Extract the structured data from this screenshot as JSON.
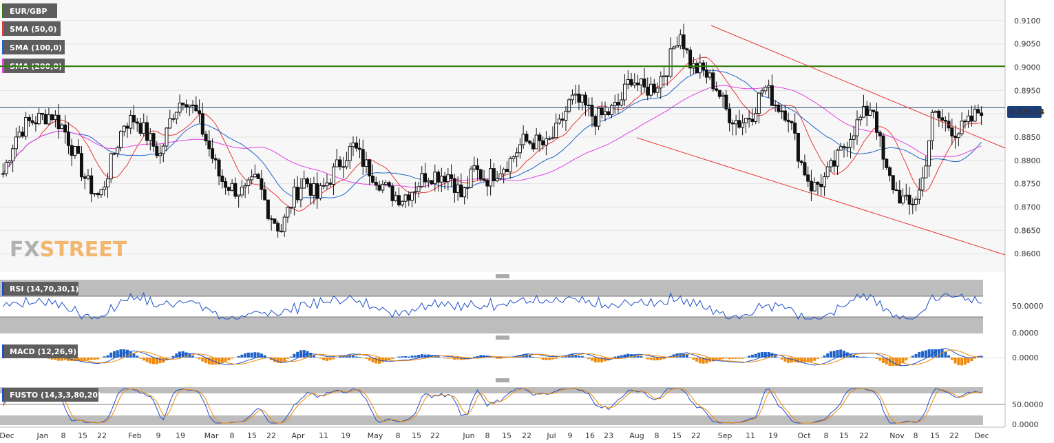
{
  "instrument": "EUR/GBP",
  "current_price": "0.89134",
  "indicators": [
    {
      "label": "SMA (50,0)",
      "color": "#e53935"
    },
    {
      "label": "SMA (100,0)",
      "color": "#1e63c9"
    },
    {
      "label": "SMA (200,0)",
      "color": "#e040e0"
    }
  ],
  "watermark": {
    "part1": "FX",
    "part2": "STREET"
  },
  "resistance_level": 0.9002,
  "colors": {
    "instrument": "#3a7a1a",
    "resistance": "#2e7d0a",
    "price_line": "#1a3f7a",
    "trend": "#e53935",
    "rsi": "#1e4fc9",
    "macd_pos": "#1e63c9",
    "macd_neg": "#f08a0a",
    "signal": "#f08a0a"
  },
  "panels": {
    "rsi": {
      "label": "RSI (14,70,30,1)",
      "ticks": [
        "50.0000",
        "0.0000"
      ]
    },
    "macd": {
      "label": "MACD (12,26,9)",
      "ticks": [
        "0.0000"
      ]
    },
    "fusto": {
      "label": "FUSTO (14,3,3,80,20)",
      "ticks": [
        "50.0000",
        "0.0000"
      ]
    }
  },
  "chart_data": {
    "type": "candlestick",
    "y_ticks": [
      "0.9100",
      "0.9050",
      "0.9000",
      "0.8950",
      "0.8900",
      "0.8850",
      "0.8800",
      "0.8750",
      "0.8700",
      "0.8650",
      "0.8600"
    ],
    "ylim": [
      0.8575,
      0.9135
    ],
    "x_ticks": [
      "Dec",
      "Jan",
      "8",
      "15",
      "22",
      "Feb",
      "9",
      "19",
      "Mar",
      "8",
      "15",
      "22",
      "Apr",
      "11",
      "19",
      "May",
      "8",
      "15",
      "22",
      "Jun",
      "8",
      "15",
      "22",
      "Jul",
      "9",
      "16",
      "23",
      "Aug",
      "8",
      "15",
      "22",
      "Sep",
      "11",
      "19",
      "Oct",
      "8",
      "15",
      "22",
      "Nov",
      "8",
      "15",
      "22",
      "Dec"
    ],
    "trendlines": [
      {
        "name": "upper",
        "from": [
          0.9104,
          "Aug 28"
        ],
        "to": [
          0.8837,
          "Dec 4"
        ]
      },
      {
        "name": "lower",
        "from": [
          0.8858,
          "Aug 1"
        ],
        "to": [
          0.8602,
          "Dec 4"
        ]
      }
    ],
    "approx_closes": [
      0.8772,
      0.885,
      0.888,
      0.889,
      0.89,
      0.887,
      0.881,
      0.875,
      0.872,
      0.88,
      0.888,
      0.889,
      0.885,
      0.881,
      0.89,
      0.894,
      0.89,
      0.883,
      0.876,
      0.874,
      0.873,
      0.876,
      0.869,
      0.865,
      0.872,
      0.876,
      0.872,
      0.876,
      0.88,
      0.883,
      0.879,
      0.876,
      0.873,
      0.872,
      0.874,
      0.877,
      0.877,
      0.877,
      0.872,
      0.878,
      0.876,
      0.878,
      0.88,
      0.884,
      0.884,
      0.883,
      0.887,
      0.893,
      0.892,
      0.889,
      0.89,
      0.892,
      0.898,
      0.895,
      0.896,
      0.9,
      0.908,
      0.9,
      0.899,
      0.896,
      0.89,
      0.888,
      0.89,
      0.896,
      0.892,
      0.89,
      0.88,
      0.874,
      0.876,
      0.88,
      0.885,
      0.889,
      0.892,
      0.878,
      0.873,
      0.87,
      0.874,
      0.89,
      0.888,
      0.886,
      0.888,
      0.8913
    ]
  }
}
